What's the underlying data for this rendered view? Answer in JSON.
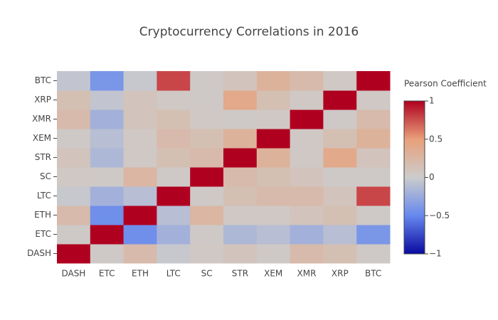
{
  "chart_data": {
    "type": "heatmap",
    "title": "Cryptocurrency Correlations in 2016",
    "x": [
      "DASH",
      "ETC",
      "ETH",
      "LTC",
      "SC",
      "STR",
      "XEM",
      "XMR",
      "XRP",
      "BTC"
    ],
    "y": [
      "DASH",
      "ETC",
      "ETH",
      "LTC",
      "SC",
      "STR",
      "XEM",
      "XMR",
      "XRP",
      "BTC"
    ],
    "z": [
      [
        1,
        0.03,
        0.2,
        -0.03,
        0.05,
        0.1,
        0.03,
        0.2,
        0.15,
        0.03
      ],
      [
        0.03,
        1,
        -0.45,
        -0.2,
        0.03,
        -0.15,
        -0.1,
        -0.2,
        -0.1,
        -0.4
      ],
      [
        0.2,
        -0.45,
        1,
        -0.1,
        0.25,
        0.05,
        0.05,
        0.1,
        0.15,
        0.03
      ],
      [
        -0.03,
        -0.2,
        -0.1,
        1,
        0.03,
        0.15,
        0.2,
        0.2,
        0.1,
        0.78
      ],
      [
        0.05,
        0.03,
        0.25,
        0.03,
        1,
        0.2,
        0.15,
        0.1,
        0.03,
        0.03
      ],
      [
        0.1,
        -0.15,
        0.05,
        0.15,
        0.2,
        1,
        0.3,
        0.05,
        0.4,
        0.1
      ],
      [
        0.03,
        -0.1,
        0.05,
        0.2,
        0.15,
        0.3,
        1,
        0.05,
        0.15,
        0.3
      ],
      [
        0.2,
        -0.2,
        0.1,
        0.15,
        0.05,
        0.03,
        0.05,
        1,
        0.03,
        0.2
      ],
      [
        0.15,
        -0.05,
        0.1,
        0.05,
        0.03,
        0.4,
        0.15,
        0.05,
        1,
        0.05
      ],
      [
        -0.05,
        -0.4,
        -0.03,
        0.78,
        0.03,
        0.1,
        0.3,
        0.2,
        0.05,
        1
      ]
    ],
    "zlim": [
      -1,
      1
    ],
    "colorscale": [
      [
        0,
        "#0a0aa0"
      ],
      [
        0.25,
        "#6688ee"
      ],
      [
        0.5,
        "#cccccc"
      ],
      [
        0.75,
        "#e8a07a"
      ],
      [
        1,
        "#b00020"
      ]
    ],
    "colorbar_title": "Pearson Coefficient",
    "colorbar_ticks": [
      1,
      0.5,
      0,
      {
        "value": -0.5,
        "label": "−0.5"
      },
      {
        "value": -1,
        "label": "−1"
      }
    ]
  }
}
